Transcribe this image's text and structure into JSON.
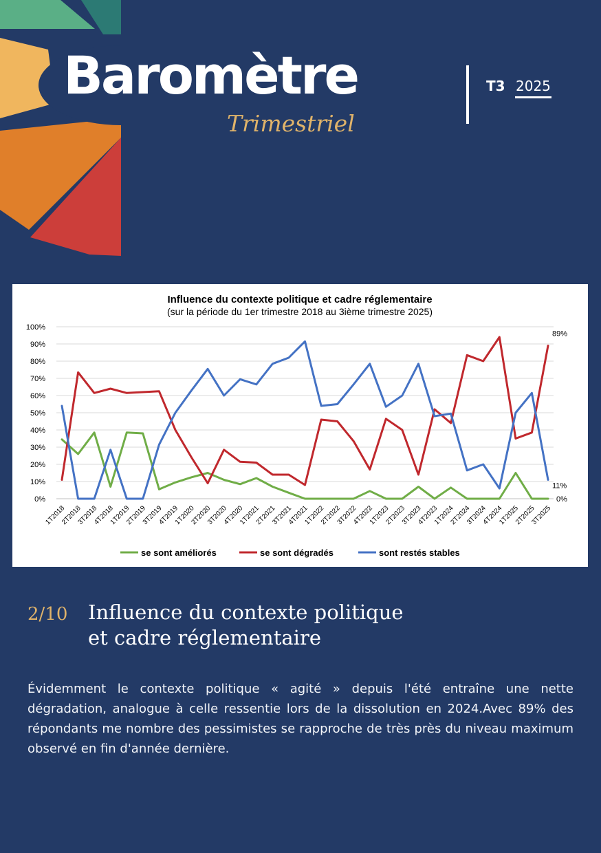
{
  "logo": {
    "title": "Barometre",
    "subtitle": "Trimestriel"
  },
  "issue": {
    "quarter": "T3",
    "year": "2025"
  },
  "chart_data": {
    "type": "line",
    "title": "Influence du contexte politique et cadre réglementaire",
    "subtitle": "(sur la période du 1er trimestre 2018 au 3ième trimestre 2025)",
    "categories": [
      "1T2018",
      "2T2018",
      "3T2018",
      "4T2018",
      "1T2019",
      "2T2019",
      "3T2019",
      "4T2019",
      "1T2020",
      "2T2020",
      "3T2020",
      "4T2020",
      "1T2021",
      "2T2021",
      "3T2021",
      "4T2021",
      "1T2022",
      "2T2022",
      "3T2022",
      "4T2022",
      "1T2023",
      "2T2023",
      "3T2023",
      "4T2023",
      "1T2024",
      "2T2024",
      "3T2024",
      "4T2024",
      "1T2025",
      "2T2025",
      "3T2025"
    ],
    "y_ticks": [
      "0%",
      "10%",
      "20%",
      "30%",
      "40%",
      "50%",
      "60%",
      "70%",
      "80%",
      "90%",
      "100%"
    ],
    "ylim": [
      0,
      100
    ],
    "grid": true,
    "legend_position": "bottom",
    "series": [
      {
        "name": "se sont améliorés",
        "color": "#70ad47",
        "values": [
          34.5,
          26,
          38.5,
          7,
          38.5,
          38,
          5.5,
          9.5,
          12.5,
          15,
          11,
          8.5,
          12,
          7,
          3.5,
          0,
          0,
          0,
          0,
          4.5,
          0,
          0,
          7,
          0,
          6.5,
          0,
          0,
          0,
          15,
          0,
          0
        ]
      },
      {
        "name": "se sont dégradés",
        "color": "#c0282d",
        "values": [
          11,
          73.5,
          61.5,
          64,
          61.5,
          62,
          62.5,
          40,
          24,
          9,
          28.5,
          21.5,
          21,
          14,
          14,
          8,
          46,
          45,
          33.5,
          17,
          46.5,
          40,
          14,
          52,
          44,
          83.5,
          80,
          94,
          35,
          38.5,
          89
        ]
      },
      {
        "name": "sont restés stables",
        "color": "#4472c4",
        "values": [
          54,
          0,
          0,
          28.5,
          0,
          0,
          31.5,
          50,
          63,
          75.5,
          60,
          69.5,
          66.5,
          78.5,
          82,
          91.5,
          54,
          55,
          66.5,
          78.5,
          53.5,
          60,
          78.5,
          48,
          49.5,
          16.5,
          20,
          6,
          50,
          61.5,
          11
        ]
      }
    ],
    "end_labels": [
      "89%",
      "11%",
      "0%"
    ]
  },
  "section": {
    "number": "2/10",
    "title_line1": "Influence du contexte politique",
    "title_line2": "et cadre réglementaire"
  },
  "body": {
    "text": "Évidemment le contexte politique « agité » depuis l'été entraîne une nette dégradation, analogue à celle ressentie lors de la dissolution en 2024.Avec 89% des répondants me nombre des pessimistes  se rapproche de très près du niveau maximum observé en fin d'année dernière."
  },
  "palette": {
    "background": "#233a66",
    "accent": "#e0b36a",
    "wheel": [
      "#2c7a74",
      "#5aaf86",
      "#f0b65e",
      "#e07f2a",
      "#cc3e3a"
    ]
  }
}
